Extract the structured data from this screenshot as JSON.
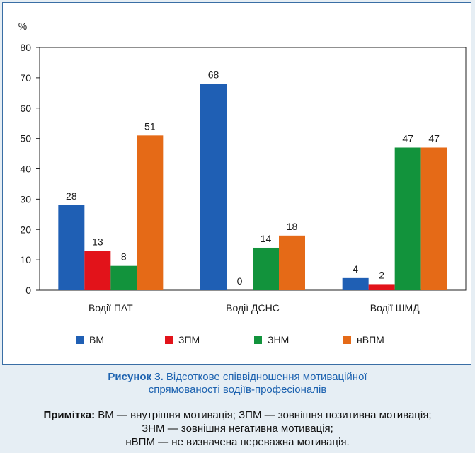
{
  "chart_data": {
    "type": "bar",
    "ylabel": "%",
    "ylim": [
      0,
      80
    ],
    "yticks": [
      0,
      10,
      20,
      30,
      40,
      50,
      60,
      70,
      80
    ],
    "categories": [
      "Водії ПАТ",
      "Водії ДСНС",
      "Водії ШМД"
    ],
    "series": [
      {
        "name": "ВМ",
        "color": "#1f5fb4",
        "values": [
          28,
          68,
          4
        ]
      },
      {
        "name": "ЗПМ",
        "color": "#e2131a",
        "values": [
          13,
          0,
          2
        ]
      },
      {
        "name": "ЗНМ",
        "color": "#12933c",
        "values": [
          8,
          14,
          47
        ]
      },
      {
        "name": "нВПМ",
        "color": "#e56a17",
        "values": [
          51,
          18,
          47
        ]
      }
    ],
    "grid": false,
    "legend": "bottom"
  },
  "caption": {
    "lead": "Рисунок 3.",
    "text_line1": " Відсоткове співвідношення мотиваційної",
    "text_line2": "спрямованості водіїв-професіоналів"
  },
  "note": {
    "lead": "Примітка:",
    "line1": " ВМ — внутрішня мотивація; ЗПМ — зовнішня позитивна мотивація;",
    "line2": "ЗНМ — зовнішня негативна мотивація;",
    "line3": "нВПМ — не визначена переважна мотивація."
  }
}
